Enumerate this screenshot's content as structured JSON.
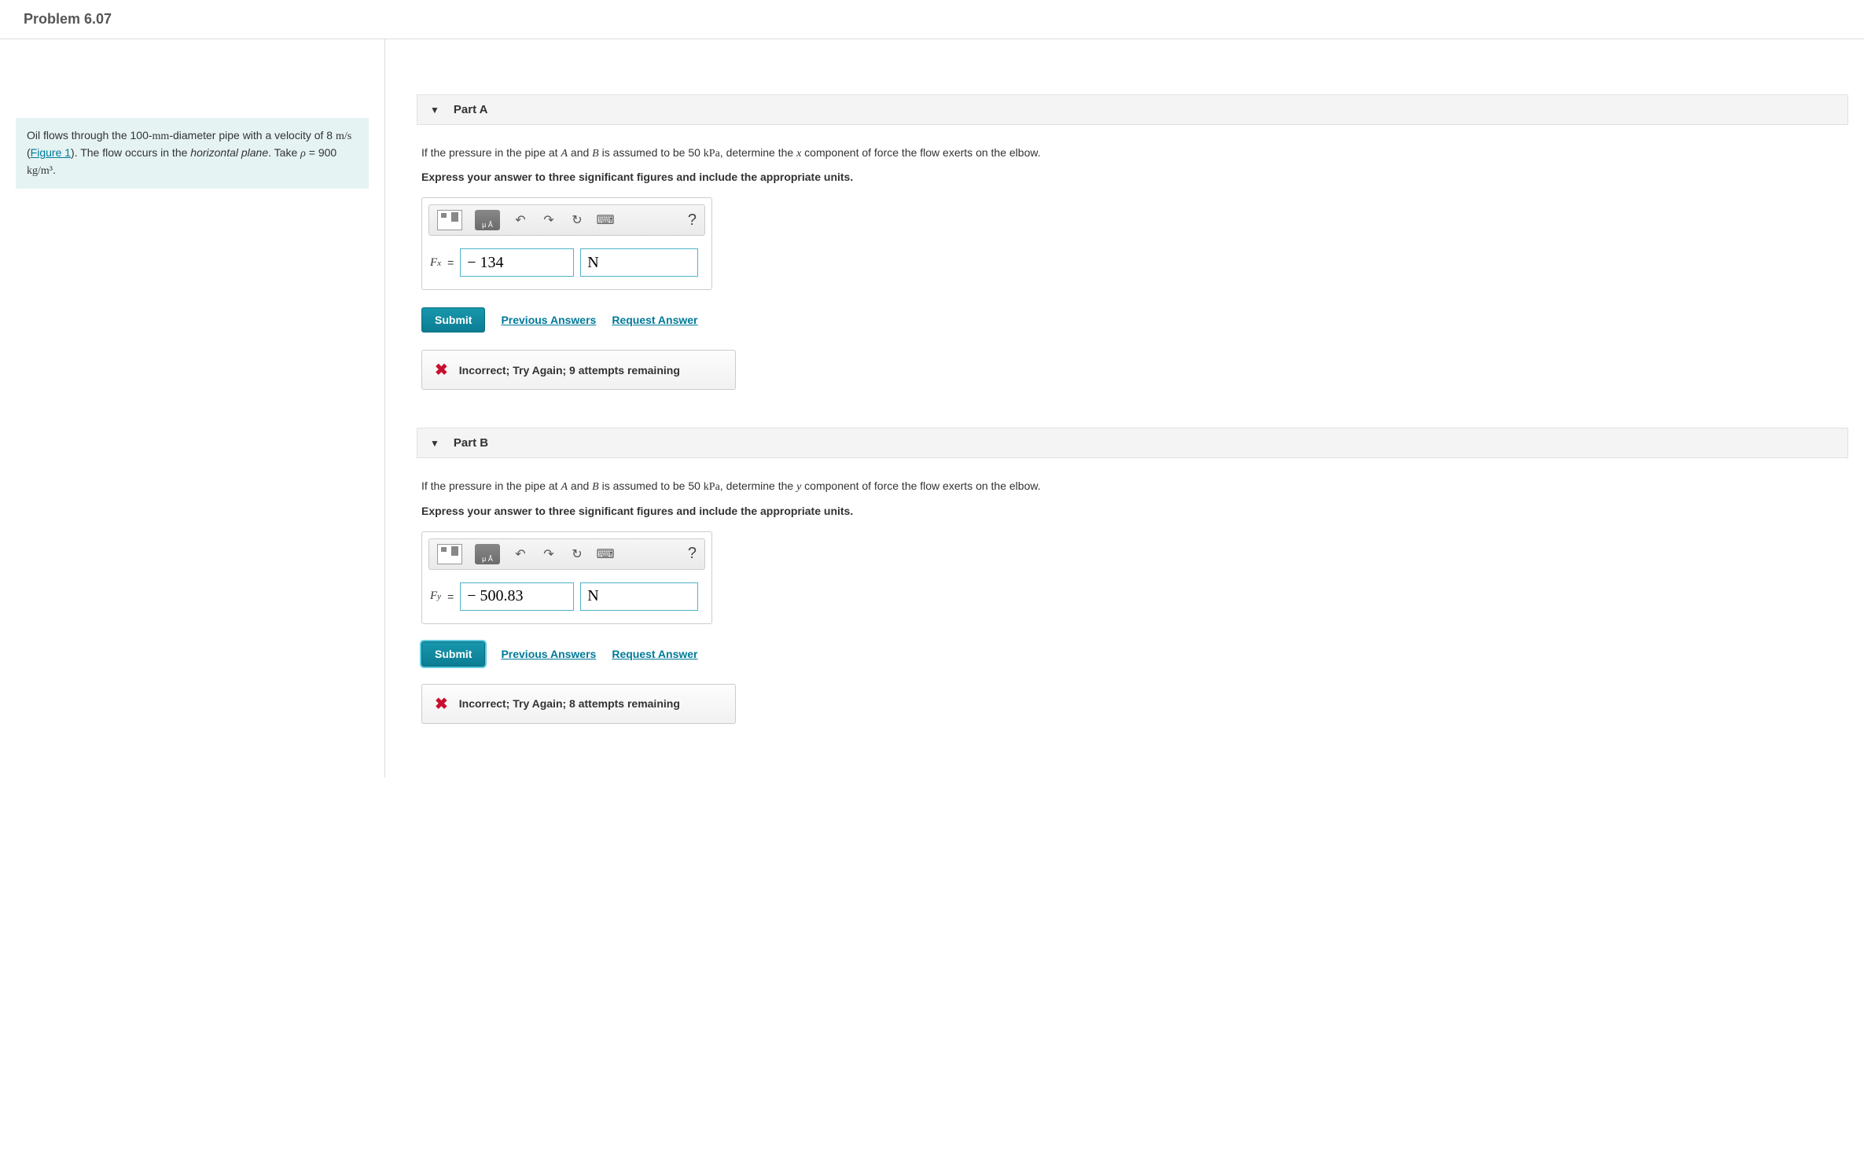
{
  "header": {
    "title": "Problem 6.07"
  },
  "problem": {
    "text_pre": "Oil flows through the 100-",
    "mm": "mm",
    "text_mid1": "-diameter pipe with a velocity of 8 ",
    "ms": "m/s",
    "text_mid2": " (",
    "figure_link": "Figure 1",
    "text_mid3": "). The flow occurs in the ",
    "hplane": "horizontal plane",
    "text_mid4": ". Take ",
    "rho": "ρ",
    "rho_val": " = 900 ",
    "rho_unit": "kg/m³",
    "text_end": "."
  },
  "parts": {
    "a": {
      "title": "Part A",
      "q_pre": "If the pressure in the pipe at ",
      "A": "A",
      "q_and": " and ",
      "B": "B",
      "q_mid": " is assumed to be 50 ",
      "kpa": "kPa",
      "q_post": ", determine the ",
      "comp": "x",
      "q_end": " component of force the flow exerts on the elbow.",
      "instruction": "Express your answer to three significant figures and include the appropriate units.",
      "var": "F",
      "sub": "x",
      "value": "− 134",
      "unit": "N",
      "submit": "Submit",
      "prev": "Previous Answers",
      "req": "Request Answer",
      "feedback": "Incorrect; Try Again; 9 attempts remaining"
    },
    "b": {
      "title": "Part B",
      "q_pre": "If the pressure in the pipe at ",
      "A": "A",
      "q_and": " and ",
      "B": "B",
      "q_mid": " is assumed to be 50 ",
      "kpa": "kPa",
      "q_post": ", determine the ",
      "comp": "y",
      "q_end": " component of force the flow exerts on the elbow.",
      "instruction": "Express your answer to three significant figures and include the appropriate units.",
      "var": "F",
      "sub": "y",
      "value": "− 500.83",
      "unit": "N",
      "submit": "Submit",
      "prev": "Previous Answers",
      "req": "Request Answer",
      "feedback": "Incorrect; Try Again; 8 attempts remaining"
    }
  },
  "toolbar": {
    "sub_label": "μ Å"
  }
}
